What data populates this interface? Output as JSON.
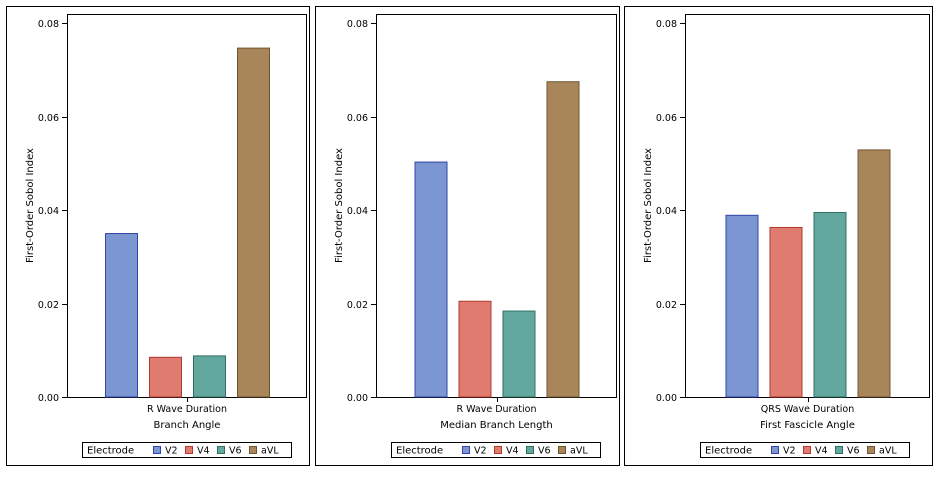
{
  "electrode_legend": {
    "title": "Electrode",
    "entries": [
      "V2",
      "V4",
      "V6",
      "aVL"
    ],
    "colors": [
      "#7b96d0",
      "#e07b70",
      "#62a89e",
      "#a8865a"
    ],
    "edge_colors": [
      "#3344aa",
      "#b03a2e",
      "#2f6f63",
      "#6e5530"
    ]
  },
  "caption": "",
  "chart_data": [
    {
      "type": "bar",
      "categories": [
        "V2",
        "V4",
        "V6",
        "aVL"
      ],
      "values": [
        0.035,
        0.0085,
        0.0088,
        0.0747
      ],
      "ylabel": "First-Order Sobol Index",
      "xlabel_line1": "R Wave Duration",
      "xlabel_line2": "Branch Angle",
      "ylim": [
        0,
        0.082
      ],
      "yticks": [
        "0.00",
        "0.02",
        "0.04",
        "0.06",
        "0.08"
      ],
      "legend": "bottom"
    },
    {
      "type": "bar",
      "categories": [
        "V2",
        "V4",
        "V6",
        "aVL"
      ],
      "values": [
        0.0503,
        0.0205,
        0.0184,
        0.0675
      ],
      "ylabel": "First-Order Sobol Index",
      "xlabel_line1": "R Wave Duration",
      "xlabel_line2": "Median Branch Length",
      "ylim": [
        0,
        0.082
      ],
      "yticks": [
        "0.00",
        "0.02",
        "0.04",
        "0.06",
        "0.08"
      ],
      "legend": "bottom"
    },
    {
      "type": "bar",
      "categories": [
        "V2",
        "V4",
        "V6",
        "aVL"
      ],
      "values": [
        0.0389,
        0.0363,
        0.0395,
        0.0529
      ],
      "ylabel": "First-Order Sobol Index",
      "xlabel_line1": "QRS Wave Duration",
      "xlabel_line2": "First Fascicle Angle",
      "ylim": [
        0,
        0.082
      ],
      "yticks": [
        "0.00",
        "0.02",
        "0.04",
        "0.06",
        "0.08"
      ],
      "legend": "bottom"
    }
  ]
}
